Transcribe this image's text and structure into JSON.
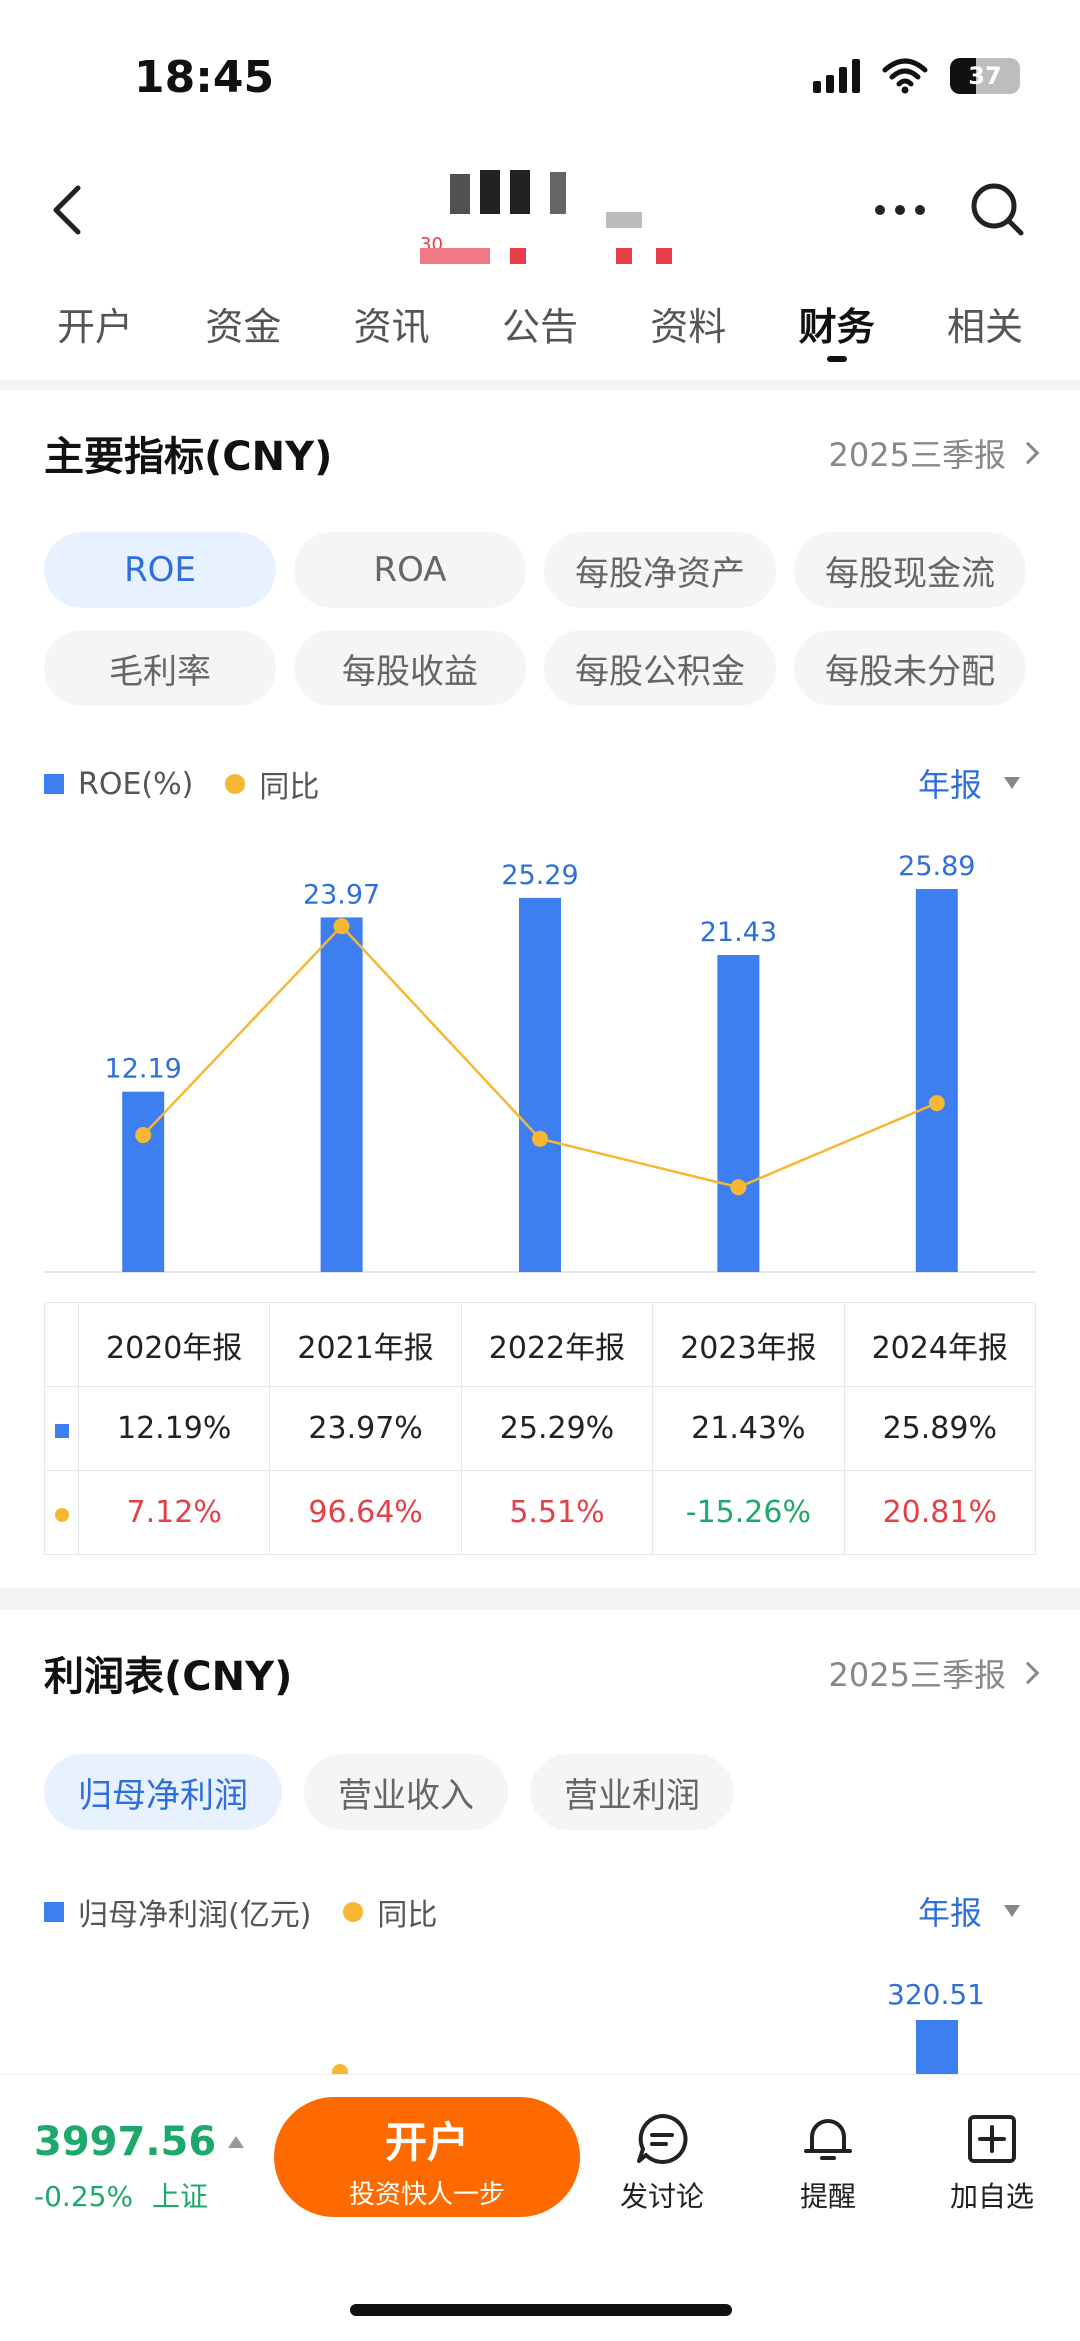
{
  "status": {
    "time": "18:45",
    "battery": "37"
  },
  "nav": {
    "title_partial": "30"
  },
  "tabs": [
    "开户",
    "资金",
    "资讯",
    "公告",
    "资料",
    "财务",
    "相关"
  ],
  "active_tab": "财务",
  "indicators": {
    "title": "主要指标(CNY)",
    "report_link": "2025三季报",
    "pills": [
      "ROE",
      "ROA",
      "每股净资产",
      "每股现金流",
      "毛利率",
      "每股收益",
      "每股公积金",
      "每股未分配"
    ],
    "active_pill": "ROE",
    "legend_series": "ROE(%)",
    "legend_yoy": "同比",
    "period": "年报"
  },
  "chart_data": [
    {
      "type": "bar",
      "categories": [
        "2020年报",
        "2021年报",
        "2022年报",
        "2023年报",
        "2024年报"
      ],
      "series": [
        {
          "name": "ROE(%)",
          "values": [
            12.19,
            23.97,
            25.29,
            21.43,
            25.89
          ],
          "color": "#3d7ff0"
        },
        {
          "name": "同比",
          "type": "line",
          "values": [
            7.12,
            96.64,
            5.51,
            -15.26,
            20.81
          ],
          "color": "#f7b733"
        }
      ],
      "value_labels": [
        "12.19",
        "23.97",
        "25.29",
        "21.43",
        "25.89"
      ],
      "grid": false
    },
    {
      "type": "bar",
      "visible_partial": true,
      "series": [
        {
          "name": "归母净利润(亿元)",
          "visible_values": [
            320.51
          ]
        }
      ]
    }
  ],
  "table": {
    "headers": [
      "2020年报",
      "2021年报",
      "2022年报",
      "2023年报",
      "2024年报"
    ],
    "roe_row": [
      "12.19%",
      "23.97%",
      "25.29%",
      "21.43%",
      "25.89%"
    ],
    "yoy_row": [
      "7.12%",
      "96.64%",
      "5.51%",
      "-15.26%",
      "20.81%"
    ]
  },
  "profit": {
    "title": "利润表(CNY)",
    "report_link": "2025三季报",
    "pills": [
      "归母净利润",
      "营业收入",
      "营业利润"
    ],
    "active_pill": "归母净利润",
    "legend_series": "归母净利润(亿元)",
    "legend_yoy": "同比",
    "period": "年报",
    "visible_label": "320.51"
  },
  "bottom": {
    "index_value": "3997.56",
    "index_change": "-0.25%",
    "index_name": "上证",
    "open_main": "开户",
    "open_sub": "投资快人一步",
    "discuss": "发讨论",
    "remind": "提醒",
    "watch": "加自选"
  },
  "colors": {
    "accent": "#2f6fdc",
    "bar": "#3d7ff0",
    "line": "#f7b733",
    "up": "#e53f4a",
    "down": "#1fa86b",
    "cta": "#ff6a00"
  }
}
